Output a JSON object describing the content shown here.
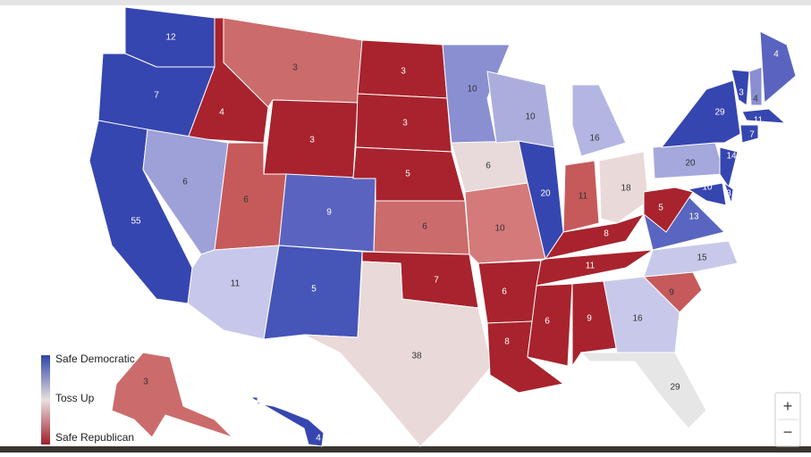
{
  "legend": {
    "top": "Safe Democratic",
    "middle": "Toss Up",
    "bottom": "Safe Republican",
    "colors": [
      "#2f45a8",
      "#e8e0e0",
      "#a01f2a"
    ]
  },
  "zoom": {
    "in": "+",
    "out": "−"
  },
  "states": [
    {
      "votes": 12,
      "color": "#3646b0"
    },
    {
      "votes": 7,
      "color": "#3646b0"
    },
    {
      "votes": 55,
      "color": "#3646b0"
    },
    {
      "votes": 4,
      "color": "#a8232d"
    },
    {
      "votes": 6,
      "color": "#9da1d8"
    },
    {
      "votes": 3,
      "color": "#cc6b6b"
    },
    {
      "votes": 3,
      "color": "#a8232d"
    },
    {
      "votes": 6,
      "color": "#c65a5a"
    },
    {
      "votes": 11,
      "color": "#c6c7ea"
    },
    {
      "votes": 9,
      "color": "#5a64c0"
    },
    {
      "votes": 5,
      "color": "#4555b8"
    },
    {
      "votes": 3,
      "color": "#a8232d"
    },
    {
      "votes": 3,
      "color": "#a8232d"
    },
    {
      "votes": 5,
      "color": "#a8232d"
    },
    {
      "votes": 6,
      "color": "#cc6b6b"
    },
    {
      "votes": 7,
      "color": "#a8232d"
    },
    {
      "votes": 38,
      "color": "#ead9d9"
    },
    {
      "votes": 10,
      "color": "#8a8fd1"
    },
    {
      "votes": 6,
      "color": "#e8dada"
    },
    {
      "votes": 10,
      "color": "#d47a7a"
    },
    {
      "votes": 6,
      "color": "#a8232d"
    },
    {
      "votes": 8,
      "color": "#a8232d"
    },
    {
      "votes": 10,
      "color": "#abaedd"
    },
    {
      "votes": 20,
      "color": "#3646b0"
    },
    {
      "votes": 16,
      "color": "#b3b6e2"
    },
    {
      "votes": 11,
      "color": "#c65a5a"
    },
    {
      "votes": 18,
      "color": "#ead9d9"
    },
    {
      "votes": 8,
      "color": "#a8232d"
    },
    {
      "votes": 11,
      "color": "#a8232d"
    },
    {
      "votes": 6,
      "color": "#a8232d"
    },
    {
      "votes": 9,
      "color": "#a8232d"
    },
    {
      "votes": 16,
      "color": "#c8c9ea"
    },
    {
      "votes": 29,
      "color": "#e6e6e6"
    },
    {
      "votes": 9,
      "color": "#c65a5a"
    },
    {
      "votes": 15,
      "color": "#c8c9ea"
    },
    {
      "votes": 13,
      "color": "#5966c1"
    },
    {
      "votes": 5,
      "color": "#a8232d"
    },
    {
      "votes": 20,
      "color": "#a4a8dc"
    },
    {
      "votes": 29,
      "color": "#3646b0"
    },
    {
      "votes": 3,
      "color": "#3646b0"
    },
    {
      "votes": 4,
      "color": "#8a8fd1"
    },
    {
      "votes": 4,
      "color": "#5a64c0"
    },
    {
      "votes": 11,
      "color": "#3646b0"
    },
    {
      "votes": 7,
      "color": "#3646b0"
    },
    {
      "votes": 14,
      "color": "#3646b0"
    },
    {
      "votes": 10,
      "color": "#3646b0"
    },
    {
      "votes": 3,
      "color": "#3646b0"
    },
    {
      "votes": 3,
      "color": "#cc6b6b"
    },
    {
      "votes": 4,
      "color": "#3646b0"
    }
  ]
}
